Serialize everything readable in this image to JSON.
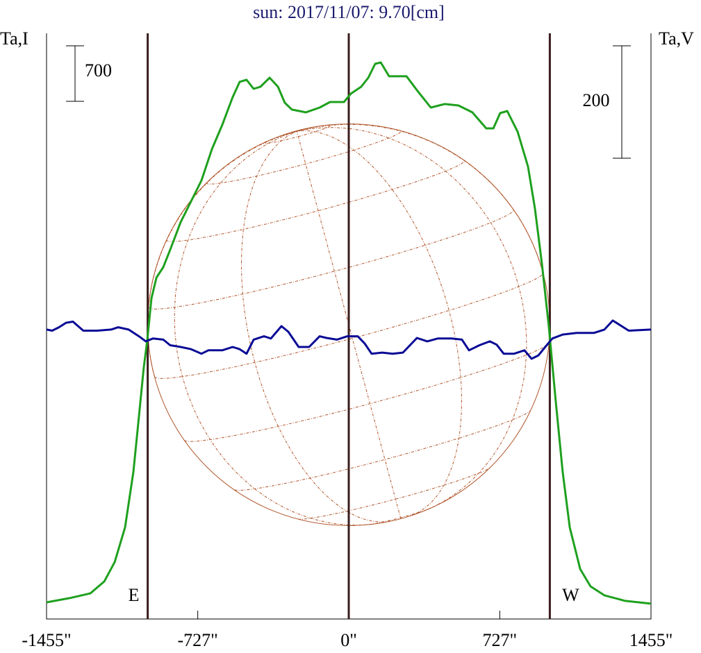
{
  "chart_data": {
    "type": "line",
    "title": "sun: 2017/11/07: 9.70[cm]",
    "y_label": "Ta,I",
    "y2_label": "Ta,V",
    "xlim": [
      -1455,
      1455
    ],
    "xticks": [
      {
        "value": -1455,
        "label": "-1455\""
      },
      {
        "value": -727,
        "label": "-727\""
      },
      {
        "value": 0,
        "label": "0\""
      },
      {
        "value": 727,
        "label": "727\""
      },
      {
        "value": 1455,
        "label": "1455\""
      }
    ],
    "ylim": [
      0,
      7385
    ],
    "y2lim": [
      -515,
      527
    ],
    "scale_bars": [
      {
        "value": 700,
        "axis": "y"
      },
      {
        "value": 200,
        "axis": "y2"
      }
    ],
    "markers": [
      {
        "x": -968,
        "label": "E"
      },
      {
        "x": 0
      },
      {
        "x": 968,
        "label": "W"
      }
    ],
    "series": [
      {
        "color": "#1ea01e",
        "axis": "y",
        "x": [
          -1455,
          -1344,
          -1244,
          -1177,
          -1127,
          -1077,
          -1037,
          -1010,
          -987,
          -970,
          -950,
          -926,
          -893,
          -860,
          -809,
          -759,
          -709,
          -659,
          -609,
          -559,
          -525,
          -492,
          -458,
          -425,
          -381,
          -341,
          -308,
          -274,
          -207,
          -140,
          -90,
          -23,
          10,
          60,
          94,
          127,
          154,
          194,
          244,
          278,
          328,
          395,
          462,
          528,
          595,
          662,
          696,
          729,
          763,
          813,
          863,
          896,
          930,
          963,
          997,
          1030,
          1064,
          1114,
          1164,
          1231,
          1331,
          1455
        ],
        "values": [
          210,
          263,
          324,
          473,
          718,
          1155,
          1855,
          2555,
          3168,
          3518,
          4043,
          4305,
          4436,
          4655,
          5005,
          5268,
          5530,
          5924,
          6230,
          6580,
          6773,
          6799,
          6685,
          6711,
          6825,
          6711,
          6510,
          6423,
          6388,
          6449,
          6519,
          6519,
          6624,
          6711,
          6825,
          7000,
          7018,
          6843,
          6843,
          6843,
          6668,
          6449,
          6493,
          6475,
          6388,
          6186,
          6186,
          6379,
          6405,
          6143,
          5705,
          5180,
          4480,
          3693,
          2730,
          1855,
          1155,
          630,
          411,
          298,
          228,
          193
        ]
      },
      {
        "color": "#0a0a96",
        "axis": "y2",
        "x": [
          -1455,
          -1428,
          -1395,
          -1361,
          -1328,
          -1278,
          -1211,
          -1144,
          -1110,
          -1060,
          -1010,
          -977,
          -943,
          -893,
          -860,
          -809,
          -759,
          -709,
          -676,
          -609,
          -559,
          -525,
          -492,
          -458,
          -408,
          -375,
          -324,
          -291,
          -241,
          -191,
          -140,
          -107,
          -57,
          -7,
          43,
          77,
          110,
          161,
          211,
          261,
          328,
          378,
          428,
          495,
          545,
          579,
          629,
          679,
          712,
          746,
          796,
          846,
          880,
          913,
          946,
          980,
          1030,
          1097,
          1181,
          1231,
          1271,
          1314,
          1348,
          1455
        ],
        "values": [
          0,
          -2,
          4,
          12,
          14,
          -2,
          -2,
          0,
          4,
          0,
          -12,
          -21,
          -16,
          -18,
          -28,
          -31,
          -35,
          -43,
          -37,
          -37,
          -31,
          -35,
          -43,
          -18,
          -12,
          -16,
          6,
          -4,
          -31,
          -31,
          -12,
          -15,
          -18,
          -12,
          -12,
          -25,
          -43,
          -41,
          -43,
          -41,
          -15,
          -21,
          -16,
          -16,
          -18,
          -37,
          -28,
          -21,
          -27,
          -43,
          -43,
          -37,
          -52,
          -46,
          -31,
          -16,
          -9,
          -6,
          -6,
          0,
          16,
          6,
          -2,
          0
        ]
      }
    ]
  }
}
